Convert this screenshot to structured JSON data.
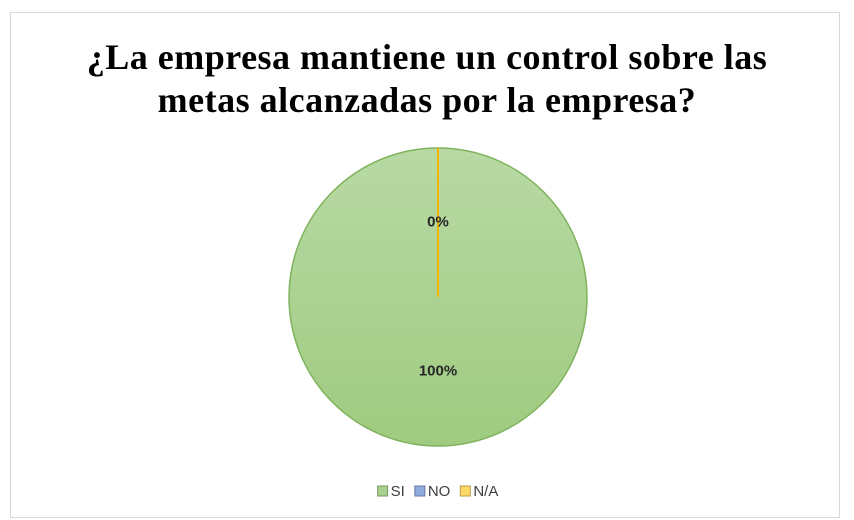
{
  "chart_data": {
    "type": "pie",
    "title": "¿La empresa mantiene un control sobre las metas alcanzadas por la empresa?",
    "categories": [
      "SI",
      "NO",
      "N/A"
    ],
    "values": [
      100,
      0,
      0
    ],
    "value_labels": [
      "100%",
      "0%",
      null
    ],
    "colors": [
      "#a9d18e",
      "#8faadc",
      "#ffd966"
    ],
    "legend": "bottom"
  }
}
